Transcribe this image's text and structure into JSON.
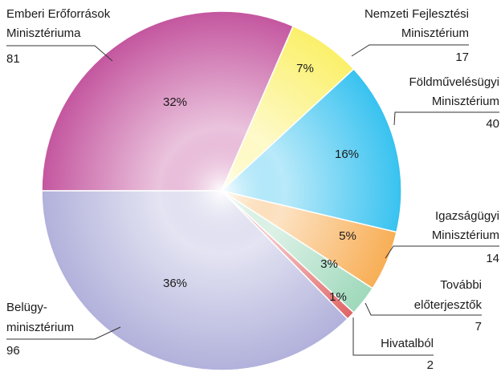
{
  "chart_data": {
    "type": "pie",
    "categories": [
      [
        "Emberi Erőforrások",
        "Minisztériuma"
      ],
      [
        "Nemzeti Fejlesztési",
        "Minisztérium"
      ],
      [
        "Földművelésügyi",
        "Minisztérium"
      ],
      [
        "Igazságügyi",
        "Minisztérium"
      ],
      [
        "További",
        "előterjesztők"
      ],
      [
        "Hivatalból"
      ],
      [
        "Belügy-",
        "minisztérium"
      ]
    ],
    "values": [
      81,
      17,
      40,
      14,
      7,
      2,
      96
    ],
    "percent_labels": [
      "32%",
      "7%",
      "16%",
      "5%",
      "3%",
      "1%",
      "36%"
    ],
    "colors": [
      "#c4569f",
      "#fbf06a",
      "#38c2f0",
      "#f8ae55",
      "#9fd9bb",
      "#e06565",
      "#b1b1db"
    ]
  }
}
